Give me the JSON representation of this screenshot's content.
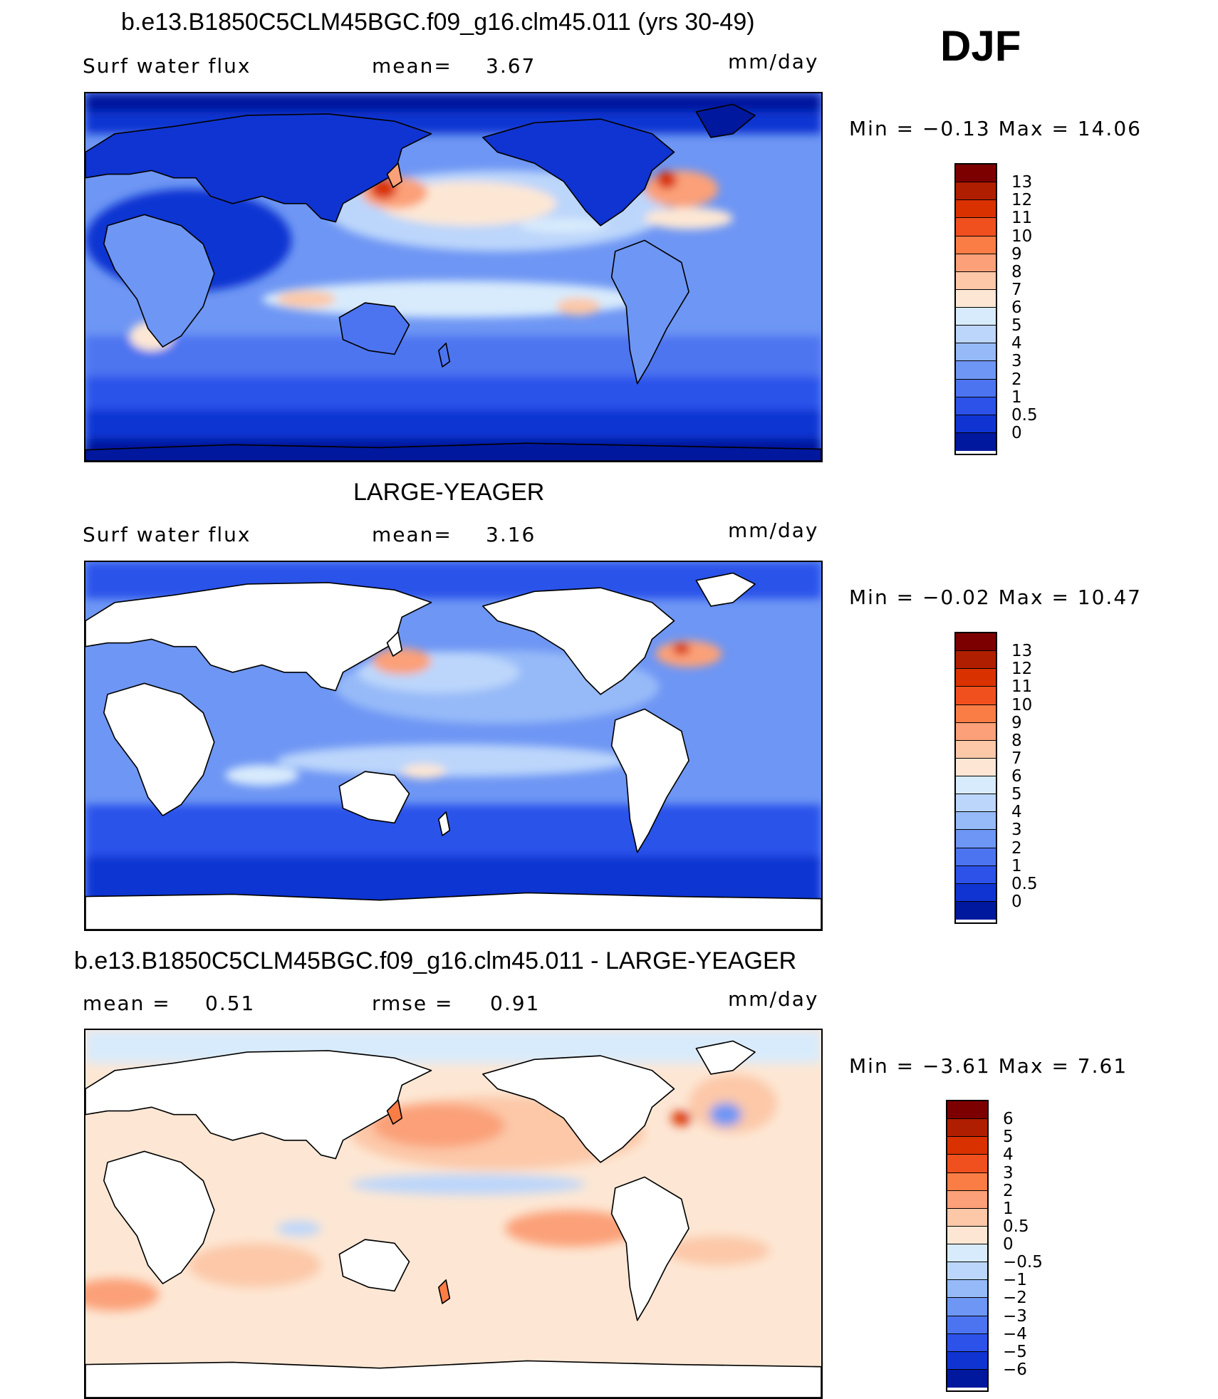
{
  "figure": {
    "season": "DJF"
  },
  "panels": [
    {
      "title": "b.e13.B1850C5CLM45BGC.f09_g16.clm45.011 (yrs 30-49)",
      "left_label": "Surf water flux",
      "mid_label": "mean=",
      "mid_value": "3.67",
      "unit": "mm/day",
      "minmax": "Min = −0.13 Max = 14.06",
      "colorbar": {
        "colors": [
          "#7d0000",
          "#b01e00",
          "#d93200",
          "#f0501e",
          "#fa7d46",
          "#fba078",
          "#fcc8a8",
          "#fde7d4",
          "#d8ebfc",
          "#bcd6fb",
          "#96baf8",
          "#6e96f4",
          "#4d74f0",
          "#2c52ea",
          "#1034d2",
          "#00189e"
        ],
        "labels": [
          "13",
          "12",
          "11",
          "10",
          "9",
          "8",
          "7",
          "6",
          "5",
          "4",
          "3",
          "2",
          "1",
          "0.5",
          "0"
        ]
      }
    },
    {
      "title": "LARGE-YEAGER",
      "left_label": "Surf water flux",
      "mid_label": "mean=",
      "mid_value": "3.16",
      "unit": "mm/day",
      "minmax": "Min = −0.02 Max = 10.47",
      "colorbar": {
        "colors": [
          "#7d0000",
          "#b01e00",
          "#d93200",
          "#f0501e",
          "#fa7d46",
          "#fba078",
          "#fcc8a8",
          "#fde7d4",
          "#d8ebfc",
          "#bcd6fb",
          "#96baf8",
          "#6e96f4",
          "#4d74f0",
          "#2c52ea",
          "#1034d2",
          "#00189e"
        ],
        "labels": [
          "13",
          "12",
          "11",
          "10",
          "9",
          "8",
          "7",
          "6",
          "5",
          "4",
          "3",
          "2",
          "1",
          "0.5",
          "0"
        ]
      }
    },
    {
      "title": "b.e13.B1850C5CLM45BGC.f09_g16.clm45.011 - LARGE-YEAGER",
      "left_label": "mean =",
      "left_value": "0.51",
      "mid_label": "rmse =",
      "mid_value": "0.91",
      "unit": "mm/day",
      "minmax": "Min = −3.61 Max = 7.61",
      "colorbar": {
        "colors": [
          "#7d0000",
          "#b01e00",
          "#d93200",
          "#f0501e",
          "#fa7d46",
          "#fba078",
          "#fcc8a8",
          "#fde7d4",
          "#d8ebfc",
          "#bcd6fb",
          "#96baf8",
          "#6e96f4",
          "#4d74f0",
          "#2c52ea",
          "#1034d2",
          "#00189e"
        ],
        "labels": [
          "6",
          "5",
          "4",
          "3",
          "2",
          "1",
          "0.5",
          "0",
          "−0.5",
          "−1",
          "−2",
          "−3",
          "−4",
          "−5",
          "−6"
        ]
      }
    }
  ]
}
